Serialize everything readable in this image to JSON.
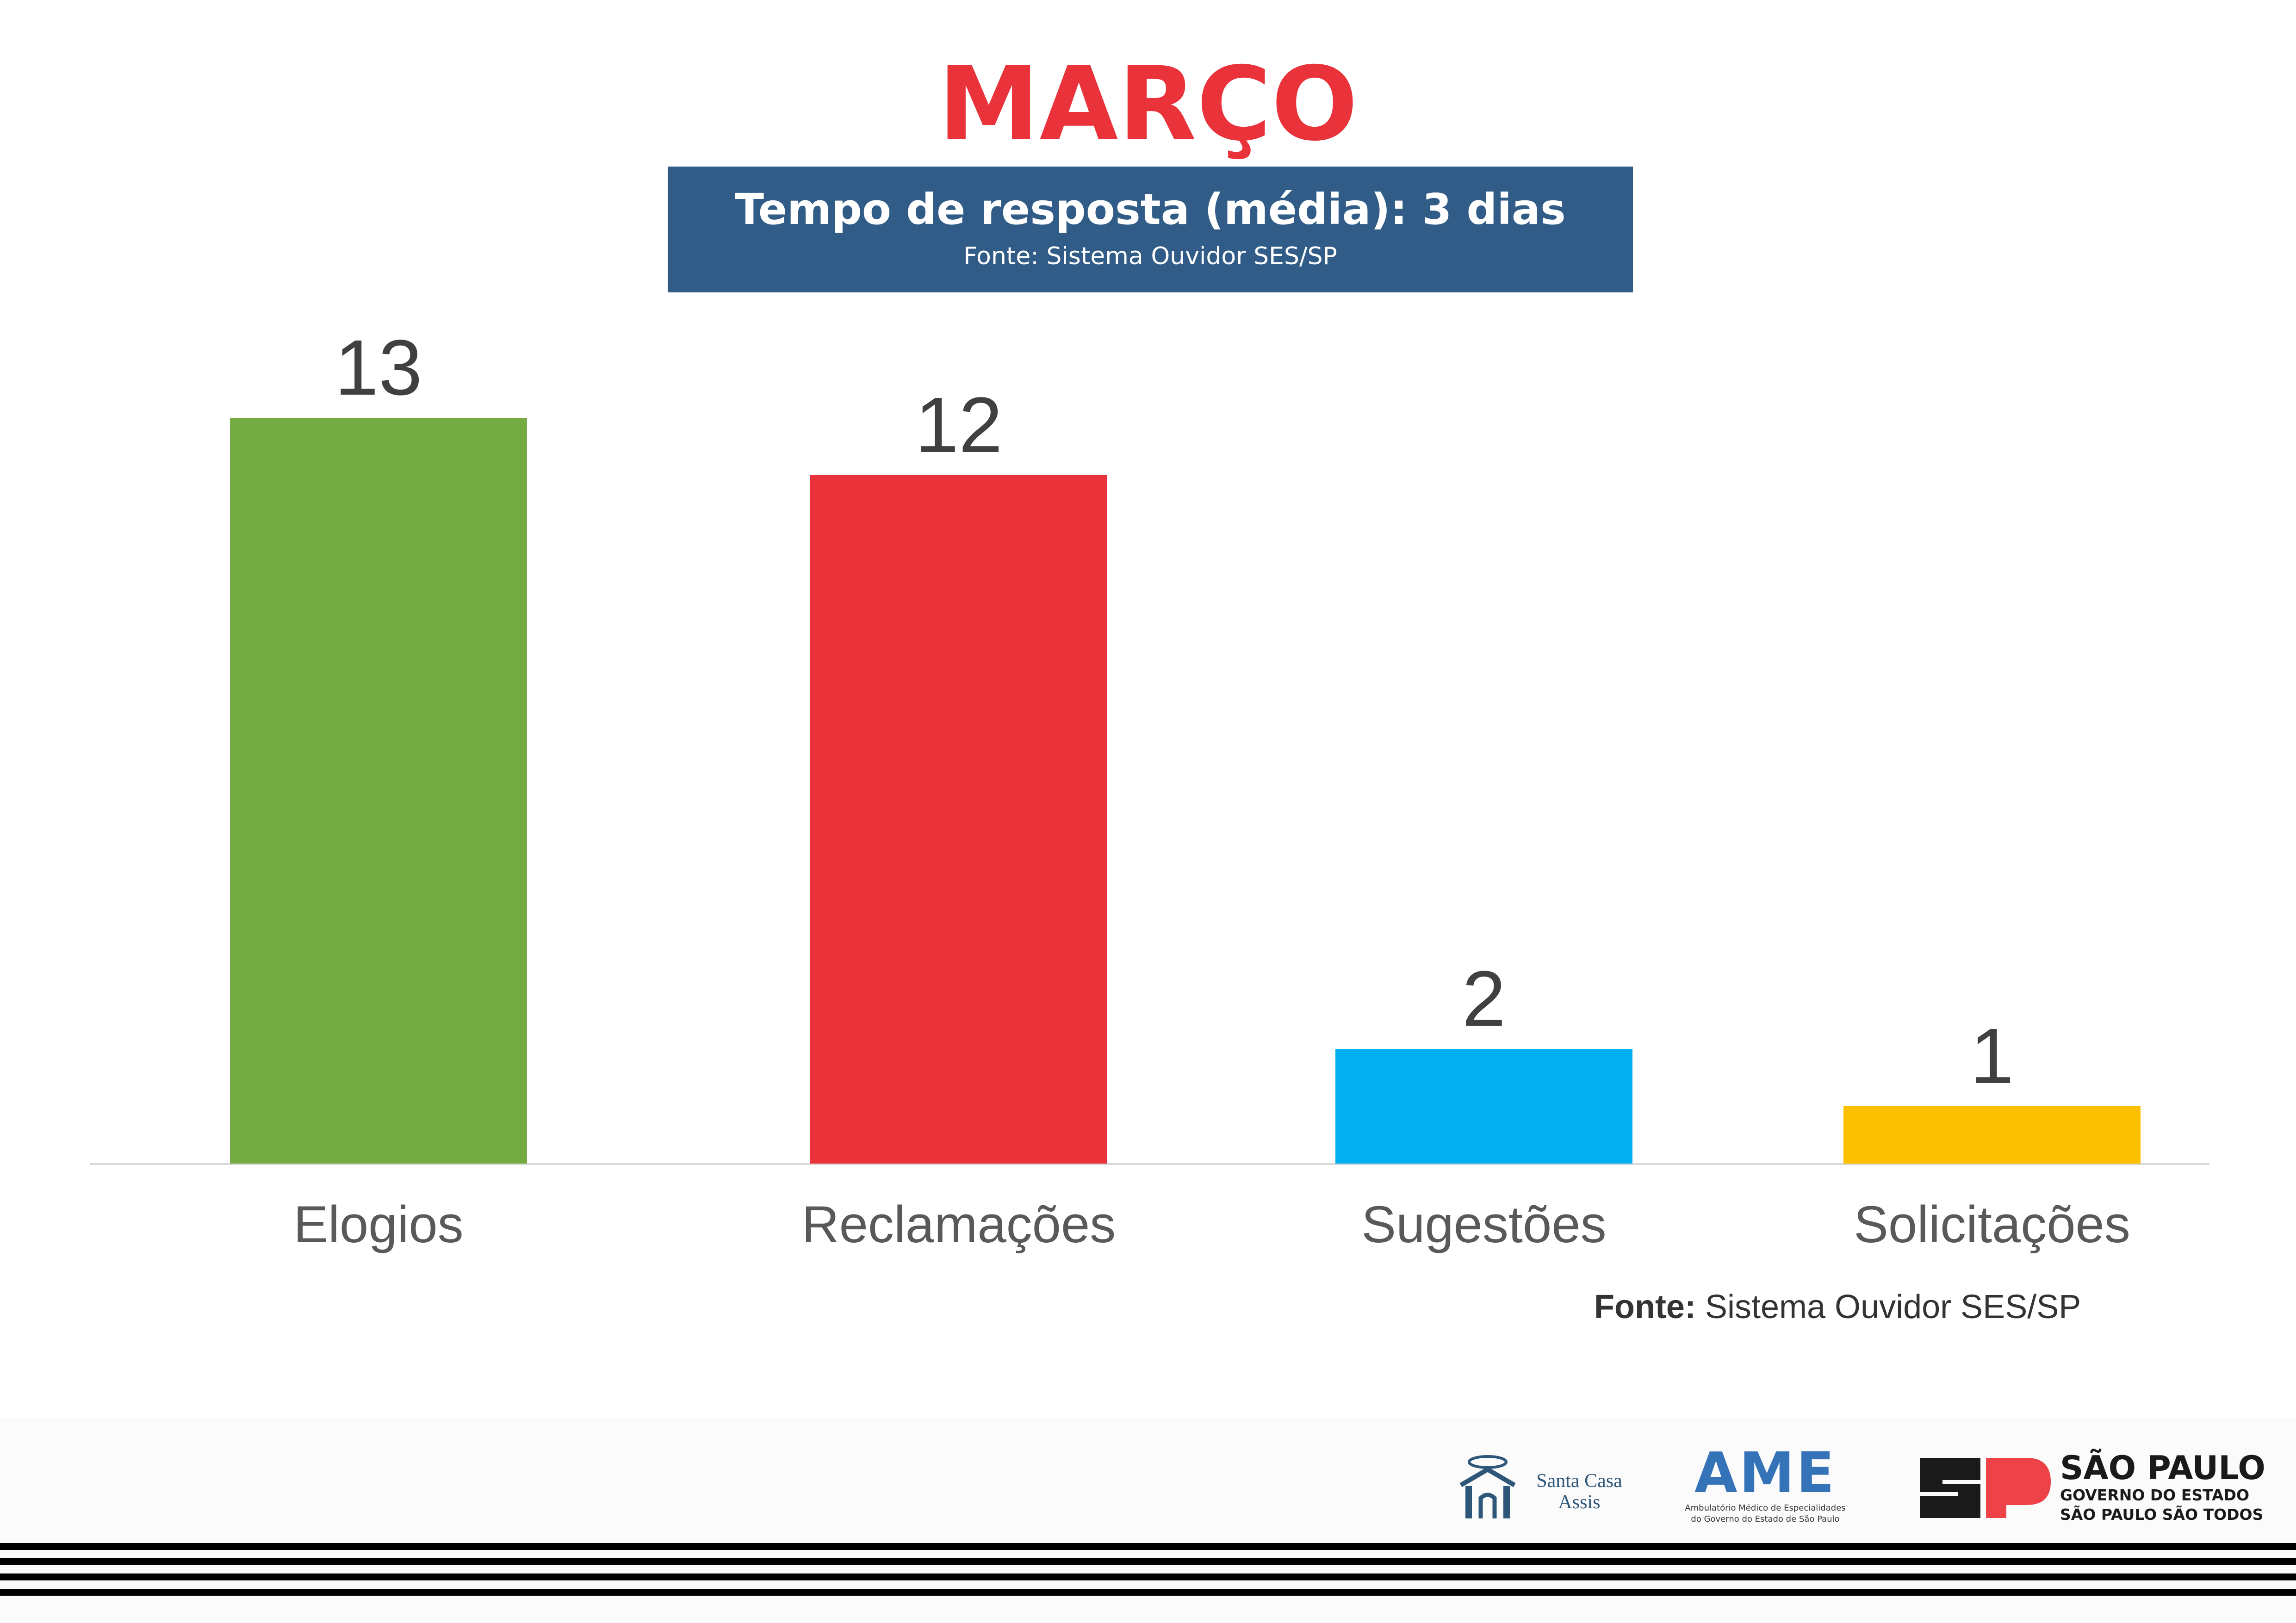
{
  "title": "MARÇO",
  "subtitle": {
    "main": "Tempo de resposta (média): 3 dias",
    "source": "Fonte: Sistema Ouvidor SES/SP"
  },
  "chart_data": {
    "type": "bar",
    "categories": [
      "Elogios",
      "Reclamações",
      "Sugestões",
      "Solicitações"
    ],
    "values": [
      13,
      12,
      2,
      1
    ],
    "colors": [
      "#74ac43",
      "#e9323a",
      "#05b0f0",
      "#fdc000"
    ],
    "data_labels": [
      "13",
      "12",
      "2",
      "1"
    ],
    "title": "",
    "xlabel": "",
    "ylabel": "",
    "grid": false,
    "legend": "none"
  },
  "footer": {
    "source_bold": "Fonte:",
    "source_text": " Sistema Ouvidor SES/SP"
  },
  "logos": {
    "santacasa": {
      "line1": "Santa Casa",
      "line2": "Assis",
      "icon": "santa-casa-building-icon"
    },
    "ame": {
      "word": "AME",
      "sub1": "Ambulatório Médico de Especialidades",
      "sub2": "do Governo do Estado de São Paulo"
    },
    "sp": {
      "line1": "SÃO PAULO",
      "line2": "GOVERNO DO ESTADO",
      "line3": "SÃO PAULO SÃO TODOS",
      "icon": "sp-monogram-icon"
    }
  }
}
